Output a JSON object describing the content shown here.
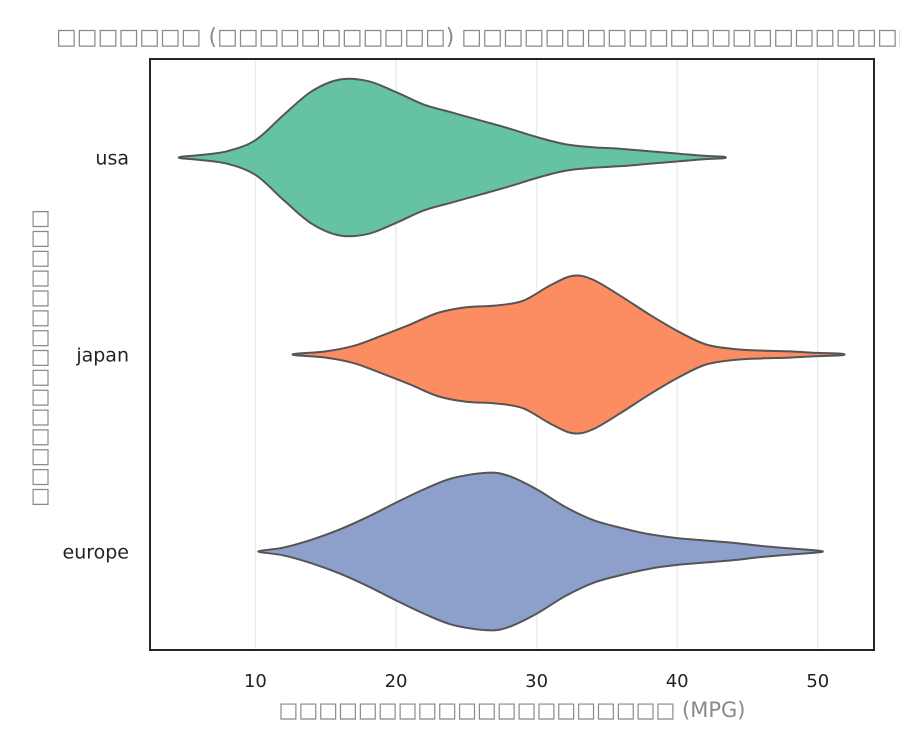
{
  "chart_data": {
    "type": "violin",
    "title": "□□□□□□□ (□□□□□□□□□□□) □□□□□□□□□□□□□□□□□□□□□□□□□□□□□□□□□□",
    "xlabel": "□□□□□□□□□□□□□□□□□□□□ (MPG)",
    "ylabel": "□□□□□□□□□□□□□□□",
    "xlim": [
      2.5,
      54
    ],
    "xticks": [
      10,
      20,
      30,
      40,
      50
    ],
    "grid": "vertical",
    "categories": [
      "usa",
      "japan",
      "europe"
    ],
    "series": [
      {
        "name": "usa",
        "color": "#66c2a5",
        "min": 4.7,
        "max": 43.3,
        "density": [
          [
            4.7,
            0.01
          ],
          [
            6,
            0.03
          ],
          [
            8,
            0.08
          ],
          [
            10,
            0.22
          ],
          [
            12,
            0.54
          ],
          [
            14,
            0.84
          ],
          [
            16,
            0.99
          ],
          [
            18,
            0.97
          ],
          [
            20,
            0.83
          ],
          [
            22,
            0.67
          ],
          [
            24,
            0.57
          ],
          [
            26,
            0.47
          ],
          [
            28,
            0.37
          ],
          [
            30,
            0.26
          ],
          [
            32,
            0.17
          ],
          [
            34,
            0.13
          ],
          [
            36,
            0.11
          ],
          [
            38,
            0.08
          ],
          [
            40,
            0.05
          ],
          [
            42,
            0.02
          ],
          [
            43.3,
            0.01
          ]
        ]
      },
      {
        "name": "japan",
        "color": "#fc8d62",
        "min": 12.9,
        "max": 51.7,
        "density": [
          [
            12.9,
            0.01
          ],
          [
            15,
            0.04
          ],
          [
            17,
            0.11
          ],
          [
            19,
            0.24
          ],
          [
            21,
            0.38
          ],
          [
            23,
            0.53
          ],
          [
            25,
            0.6
          ],
          [
            27,
            0.62
          ],
          [
            29,
            0.68
          ],
          [
            31,
            0.88
          ],
          [
            32.6,
            1.0
          ],
          [
            34,
            0.95
          ],
          [
            36,
            0.74
          ],
          [
            38,
            0.51
          ],
          [
            40,
            0.3
          ],
          [
            42,
            0.13
          ],
          [
            44,
            0.07
          ],
          [
            46,
            0.05
          ],
          [
            48,
            0.04
          ],
          [
            50,
            0.02
          ],
          [
            51.7,
            0.01
          ]
        ]
      },
      {
        "name": "europe",
        "color": "#8da0cb",
        "min": 10.4,
        "max": 50.1,
        "density": [
          [
            10.4,
            0.01
          ],
          [
            12,
            0.05
          ],
          [
            14,
            0.15
          ],
          [
            16,
            0.28
          ],
          [
            18,
            0.44
          ],
          [
            20,
            0.62
          ],
          [
            22,
            0.79
          ],
          [
            24,
            0.93
          ],
          [
            26.5,
            1.0
          ],
          [
            28,
            0.96
          ],
          [
            30,
            0.79
          ],
          [
            32,
            0.57
          ],
          [
            34,
            0.4
          ],
          [
            36,
            0.3
          ],
          [
            38,
            0.22
          ],
          [
            40,
            0.17
          ],
          [
            42,
            0.14
          ],
          [
            44,
            0.11
          ],
          [
            46,
            0.07
          ],
          [
            48,
            0.04
          ],
          [
            50.1,
            0.01
          ]
        ]
      }
    ]
  }
}
